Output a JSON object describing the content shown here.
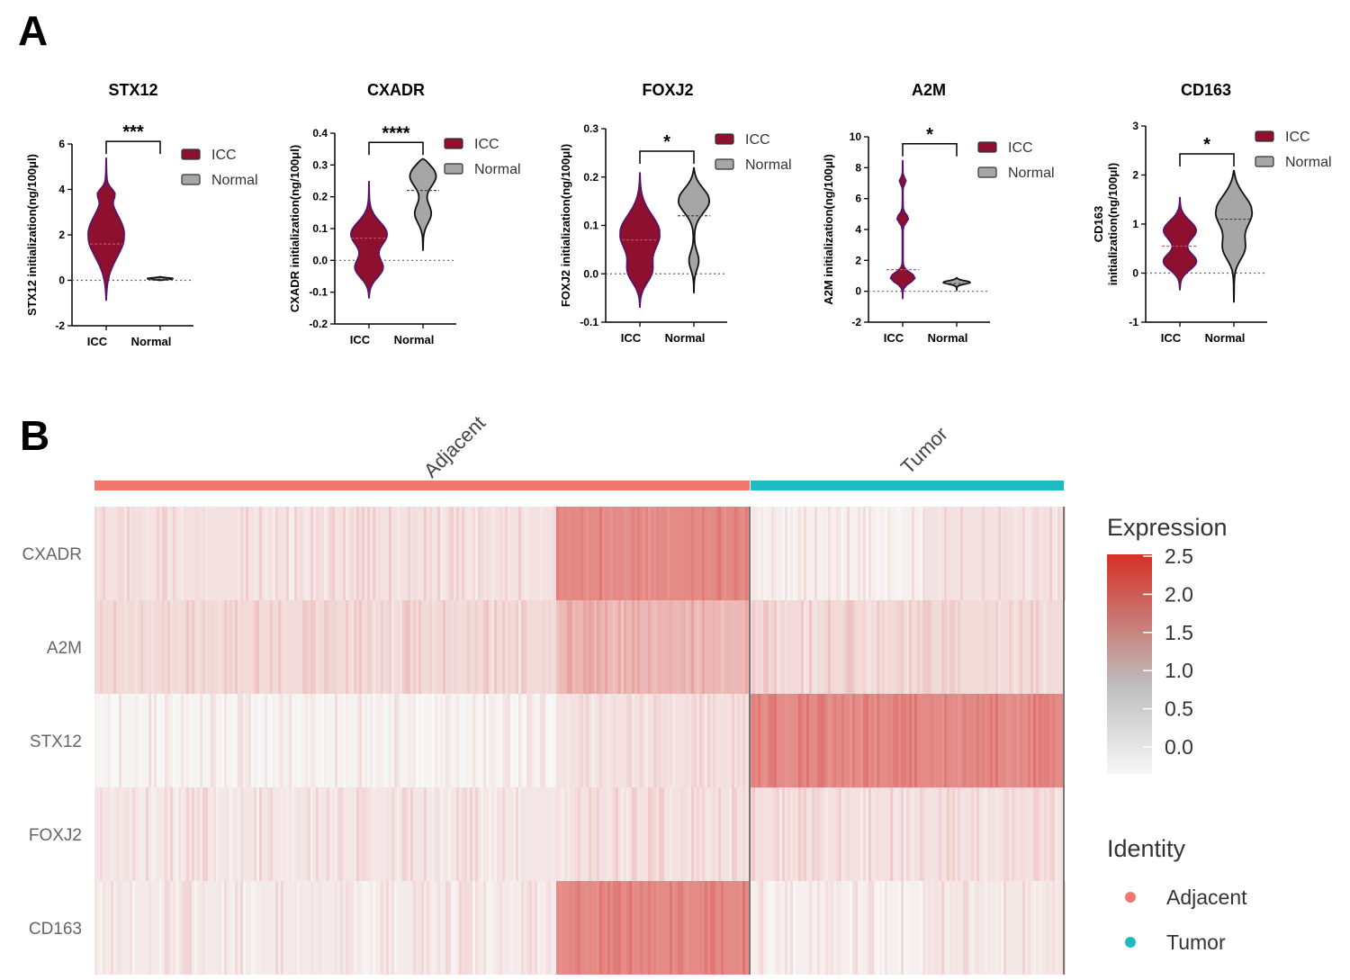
{
  "panels": {
    "a": "A",
    "b": "B"
  },
  "colors": {
    "icc": "#8e0f2e",
    "icc_stroke": "#5a1268",
    "normal": "#a6a6a6",
    "adjacent": "#f0786e",
    "tumor": "#1cbcc2"
  },
  "chart_data": [
    {
      "type": "violin",
      "title": "STX12",
      "ylabel": "STX12 initialization(ng/100μl)",
      "categories": [
        "ICC",
        "Normal"
      ],
      "ylim": [
        -2,
        6
      ],
      "yticks": [
        -2,
        0,
        2,
        4,
        6
      ],
      "significance": "***",
      "legend": [
        "ICC",
        "Normal"
      ],
      "medians": [
        1.6,
        0.05
      ],
      "ranges": [
        [
          -0.9,
          5.4
        ],
        [
          0.0,
          0.15
        ]
      ]
    },
    {
      "type": "violin",
      "title": "CXADR",
      "ylabel": "CXADR initialization(ng/100μl)",
      "categories": [
        "ICC",
        "Normal"
      ],
      "ylim": [
        -0.2,
        0.4
      ],
      "yticks": [
        -0.2,
        -0.1,
        0.0,
        0.1,
        0.2,
        0.3,
        0.4
      ],
      "significance": "****",
      "legend": [
        "ICC",
        "Normal"
      ],
      "medians": [
        0.07,
        0.22
      ],
      "ranges": [
        [
          -0.12,
          0.25
        ],
        [
          0.03,
          0.32
        ]
      ]
    },
    {
      "type": "violin",
      "title": "FOXJ2",
      "ylabel": "FOXJ2 initialization(ng/100μl)",
      "categories": [
        "ICC",
        "Normal"
      ],
      "ylim": [
        -0.1,
        0.3
      ],
      "yticks": [
        -0.1,
        0.0,
        0.1,
        0.2,
        0.3
      ],
      "significance": "*",
      "legend": [
        "ICC",
        "Normal"
      ],
      "medians": [
        0.07,
        0.12
      ],
      "ranges": [
        [
          -0.07,
          0.21
        ],
        [
          -0.04,
          0.22
        ]
      ]
    },
    {
      "type": "violin",
      "title": "A2M",
      "ylabel": "A2M initialization(ng/100μl)",
      "categories": [
        "ICC",
        "Normal"
      ],
      "ylim": [
        -2,
        10
      ],
      "yticks": [
        -2,
        0,
        2,
        4,
        6,
        8,
        10
      ],
      "significance": "*",
      "legend": [
        "ICC",
        "Normal"
      ],
      "medians": [
        1.4,
        0.5
      ],
      "ranges": [
        [
          -0.5,
          8.5
        ],
        [
          0.1,
          0.9
        ]
      ]
    },
    {
      "type": "violin",
      "title": "CD163",
      "ylabel": "CD163\ninitialization(ng/100μl)",
      "categories": [
        "ICC",
        "Normal"
      ],
      "ylim": [
        -1,
        3
      ],
      "yticks": [
        -1,
        0,
        1,
        2,
        3
      ],
      "significance": "*",
      "legend": [
        "ICC",
        "Normal"
      ],
      "medians": [
        0.55,
        1.1
      ],
      "ranges": [
        [
          -0.35,
          1.55
        ],
        [
          -0.6,
          2.1
        ]
      ]
    },
    {
      "type": "heatmap",
      "rows": [
        "CXADR",
        "A2M",
        "STX12",
        "FOXJ2",
        "CD163"
      ],
      "groups": [
        "Adjacent",
        "Tumor"
      ],
      "legend_title": "Expression",
      "legend_ticks": [
        "2.5",
        "2.0",
        "1.5",
        "1.0",
        "0.5",
        "0.0"
      ],
      "identity_title": "Identity",
      "identity_items": [
        "Adjacent",
        "Tumor"
      ],
      "block_levels": [
        [
          0.25,
          1.3,
          0.1,
          0.25
        ],
        [
          0.35,
          0.75,
          0.35,
          0.35
        ],
        [
          0.05,
          0.25,
          1.3,
          1.3
        ],
        [
          0.2,
          0.25,
          0.25,
          0.25
        ],
        [
          0.15,
          1.3,
          0.1,
          0.18
        ]
      ]
    }
  ]
}
